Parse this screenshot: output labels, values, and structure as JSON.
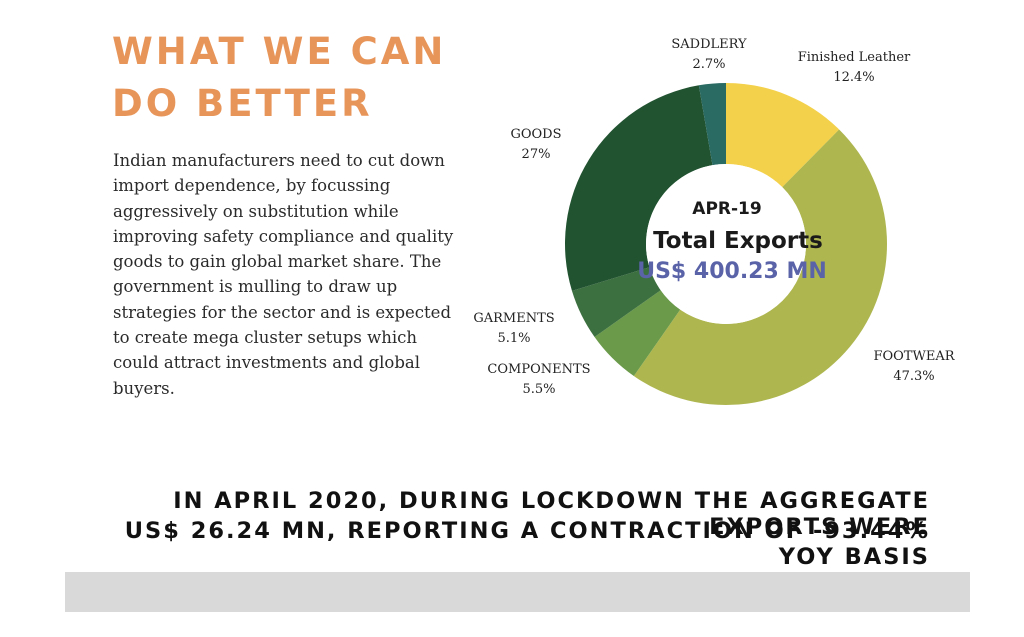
{
  "heading": {
    "line1": "WHAT WE CAN",
    "line2": "DO BETTER"
  },
  "body_text": "Indian manufacturers need to cut down import dependence, by focussing aggressively on substitution while improving safety compliance and quality goods to gain global market share. The government is mulling to draw up strategies for the sector and is expected  to create mega cluster setups which could attract investments and global buyers.",
  "chart_data": {
    "type": "pie",
    "style": "donut",
    "center": {
      "date": "APR-19",
      "title": "Total Exports",
      "value": "US$ 400.23 MN"
    },
    "slices": [
      {
        "label": "Finished Leather",
        "percent_label": "12.4%",
        "value": 12.4,
        "color": "#f4d14a"
      },
      {
        "label": "FOOTWEAR",
        "percent_label": "47.3%",
        "value": 47.3,
        "color": "#aeb650"
      },
      {
        "label": "COMPONENTS",
        "percent_label": "5.5%",
        "value": 5.5,
        "color": "#6a9a4a"
      },
      {
        "label": "GARMENTS",
        "percent_label": "5.1%",
        "value": 5.1,
        "color": "#3d7040"
      },
      {
        "label": "GOODS",
        "percent_label": "27%",
        "value": 27,
        "color": "#215331"
      },
      {
        "label": "SADDLERY",
        "percent_label": "2.7%",
        "value": 2.7,
        "color": "#2a6b64"
      }
    ]
  },
  "footer": {
    "line1": "IN APRIL 2020, DURING LOCKDOWN THE AGGREGATE EXPORTS WERE",
    "line2": "US$ 26.24 MN, REPORTING A CONTRACTION OF -93.44% YOY BASIS"
  }
}
